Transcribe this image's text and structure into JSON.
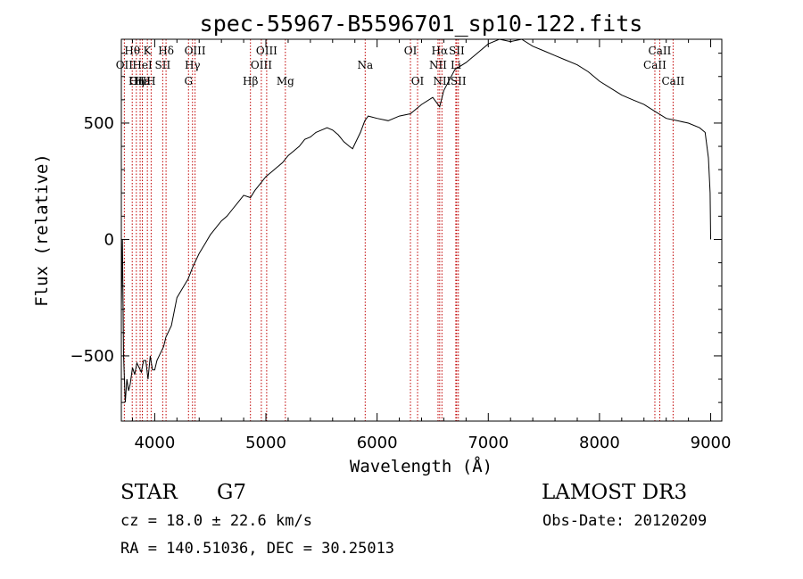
{
  "chart_data": {
    "type": "line",
    "title": "spec-55967-B5596701_sp10-122.fits",
    "xlabel": "Wavelength (Å)",
    "ylabel": "Flux (relative)",
    "xlim": [
      3700,
      9100
    ],
    "ylim": [
      -780,
      860
    ],
    "x_ticks": [
      4000,
      5000,
      6000,
      7000,
      8000,
      9000
    ],
    "y_ticks": [
      -500,
      0,
      500
    ],
    "series": [
      {
        "name": "spectrum",
        "x": [
          3700,
          3710,
          3720,
          3735,
          3750,
          3765,
          3780,
          3800,
          3820,
          3840,
          3860,
          3880,
          3900,
          3920,
          3940,
          3960,
          3980,
          4000,
          4020,
          4050,
          4080,
          4100,
          4150,
          4200,
          4250,
          4300,
          4340,
          4400,
          4450,
          4500,
          4550,
          4600,
          4650,
          4700,
          4750,
          4800,
          4861,
          4900,
          4950,
          5000,
          5050,
          5100,
          5150,
          5200,
          5250,
          5300,
          5350,
          5400,
          5450,
          5500,
          5550,
          5600,
          5650,
          5700,
          5750,
          5780,
          5800,
          5850,
          5890,
          5920,
          6000,
          6100,
          6200,
          6300,
          6400,
          6500,
          6563,
          6600,
          6700,
          6800,
          6900,
          7000,
          7100,
          7200,
          7300,
          7400,
          7500,
          7600,
          7700,
          7800,
          7900,
          8000,
          8100,
          8200,
          8300,
          8400,
          8500,
          8600,
          8700,
          8800,
          8900,
          8950,
          8980,
          8995,
          9000
        ],
        "y": [
          -300,
          0,
          -500,
          -700,
          -600,
          -650,
          -620,
          -550,
          -580,
          -530,
          -550,
          -570,
          -520,
          -520,
          -600,
          -500,
          -560,
          -560,
          -520,
          -490,
          -460,
          -420,
          -370,
          -250,
          -210,
          -170,
          -120,
          -60,
          -20,
          20,
          50,
          80,
          100,
          130,
          160,
          190,
          180,
          210,
          240,
          270,
          290,
          310,
          330,
          360,
          380,
          400,
          430,
          440,
          460,
          470,
          480,
          470,
          450,
          420,
          400,
          390,
          410,
          460,
          510,
          530,
          520,
          510,
          530,
          540,
          580,
          610,
          570,
          640,
          730,
          760,
          800,
          840,
          860,
          850,
          860,
          830,
          810,
          790,
          770,
          750,
          720,
          680,
          650,
          620,
          600,
          580,
          550,
          520,
          510,
          500,
          480,
          460,
          350,
          200,
          0
        ]
      }
    ],
    "spectral_lines": [
      {
        "label": "Hθ",
        "wave": 3798,
        "row": 1
      },
      {
        "label": "OII",
        "wave": 3727,
        "row": 2
      },
      {
        "label": "OIII",
        "wave": 3869,
        "row": 3
      },
      {
        "label": "Hε",
        "wave": 3889,
        "row": 3
      },
      {
        "label": "HeI",
        "wave": 3889,
        "row": 2
      },
      {
        "label": "Hη",
        "wave": 3835,
        "row": 3
      },
      {
        "label": "K",
        "wave": 3934,
        "row": 1
      },
      {
        "label": "H",
        "wave": 3968,
        "row": 3
      },
      {
        "label": "SII",
        "wave": 4072,
        "row": 2
      },
      {
        "label": "Hδ",
        "wave": 4102,
        "row": 1
      },
      {
        "label": "OIII",
        "wave": 4363,
        "row": 1
      },
      {
        "label": "Hγ",
        "wave": 4340,
        "row": 2
      },
      {
        "label": "G",
        "wave": 4304,
        "row": 3
      },
      {
        "label": "Hβ",
        "wave": 4861,
        "row": 3
      },
      {
        "label": "OIII",
        "wave": 5007,
        "row": 1
      },
      {
        "label": "OIII",
        "wave": 4959,
        "row": 2
      },
      {
        "label": "Mg",
        "wave": 5175,
        "row": 3
      },
      {
        "label": "Na",
        "wave": 5893,
        "row": 2
      },
      {
        "label": "OI",
        "wave": 6300,
        "row": 1
      },
      {
        "label": "OI",
        "wave": 6364,
        "row": 3
      },
      {
        "label": "Hα",
        "wave": 6563,
        "row": 1
      },
      {
        "label": "NII",
        "wave": 6548,
        "row": 2
      },
      {
        "label": "NII",
        "wave": 6583,
        "row": 3
      },
      {
        "label": "SII",
        "wave": 6716,
        "row": 1
      },
      {
        "label": "Li",
        "wave": 6708,
        "row": 2
      },
      {
        "label": "SII",
        "wave": 6731,
        "row": 3
      },
      {
        "label": "CaII",
        "wave": 8542,
        "row": 1
      },
      {
        "label": "CaII",
        "wave": 8498,
        "row": 2
      },
      {
        "label": "CaII",
        "wave": 8662,
        "row": 3
      }
    ]
  },
  "info": {
    "class_label": "STAR",
    "subclass": "G7",
    "survey": "LAMOST DR3",
    "cz": "cz = 18.0 ± 22.6 km/s",
    "obs_date": "Obs-Date: 20120209",
    "coords": "RA = 140.51036, DEC =  30.25013"
  },
  "colors": {
    "line": "#000000",
    "marker": "#c00000"
  }
}
